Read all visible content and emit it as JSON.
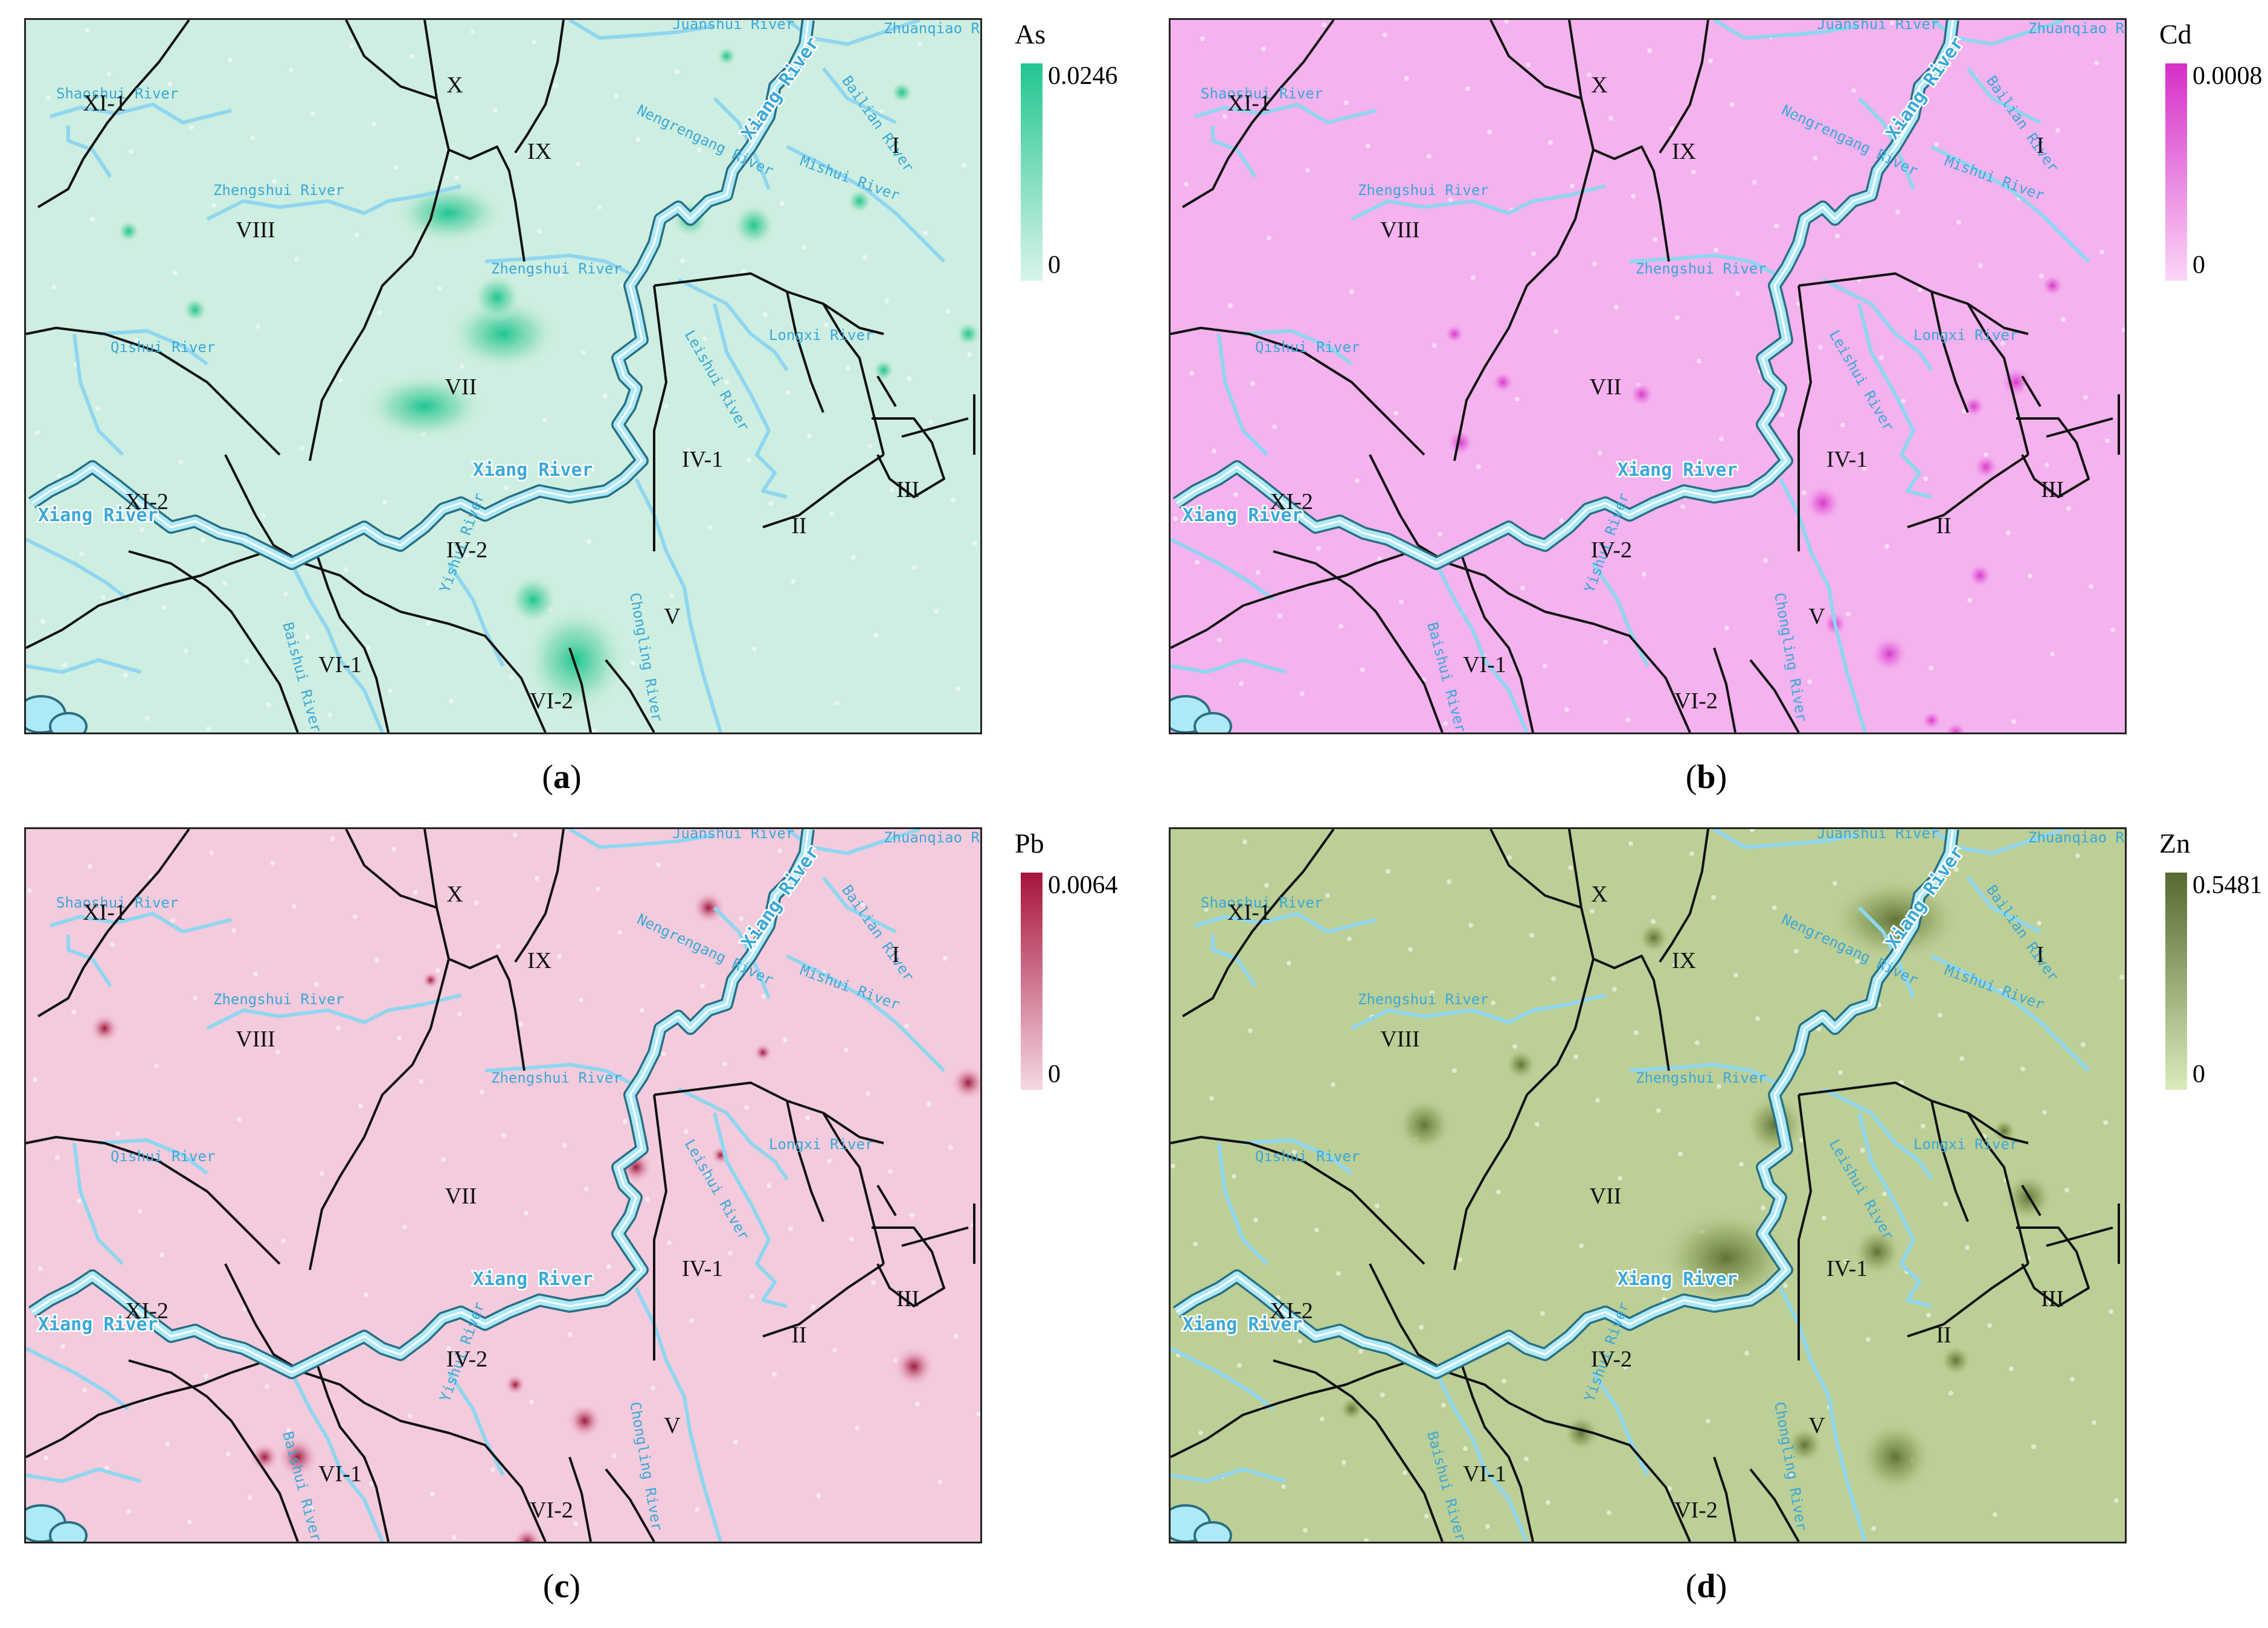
{
  "panels": [
    {
      "id": "a",
      "element": "As",
      "max_label": "0.0246",
      "min_label": "0",
      "caption_letter": "a",
      "bg": "#cdeee0",
      "mid": "#86dcb8",
      "dark": "#1fc592",
      "legend_top": "#22c591",
      "legend_bottom": "#d9f4ea"
    },
    {
      "id": "b",
      "element": "Cd",
      "max_label": "0.0008",
      "min_label": "0",
      "caption_letter": "b",
      "bg": "#f4b2ee",
      "mid": "#ec82e3",
      "dark": "#d43bc8",
      "legend_top": "#d52fc7",
      "legend_bottom": "#fbd6f7"
    },
    {
      "id": "c",
      "element": "Pb",
      "max_label": "0.0064",
      "min_label": "0",
      "caption_letter": "c",
      "bg": "#f3cbdc",
      "mid": "#e49ab4",
      "dark": "#9c1b3e",
      "legend_top": "#a6143b",
      "legend_bottom": "#f6d8e4"
    },
    {
      "id": "d",
      "element": "Zn",
      "max_label": "0.5481",
      "min_label": "0",
      "caption_letter": "d",
      "bg": "#bccf96",
      "mid": "#95ab6a",
      "dark": "#5f7436",
      "legend_top": "#56692f",
      "legend_bottom": "#dcebbd"
    }
  ],
  "zones": {
    "z1": "I",
    "z2": "II",
    "z3": "III",
    "z41": "IV-1",
    "z42": "IV-2",
    "z5": "V",
    "z61": "VI-1",
    "z62": "VI-2",
    "z7": "VII",
    "z8": "VIII",
    "z9": "IX",
    "z10": "X",
    "z111": "XI-1",
    "z112": "XI-2"
  },
  "rivers": {
    "juanshui": "Juanshui River",
    "zhuanqiao": "Zhuanqiao River",
    "xiang_north": "Xiang River",
    "bailian": "Bailian River",
    "shaoshui": "Shaoshui River",
    "nengrengang": "Nengrengang River",
    "zhengshui_west": "Zhengshui River",
    "mishui": "Mishui River",
    "zhengshui_east": "Zhengshui River",
    "qishui": "Qishui River",
    "longxi": "Longxi River",
    "leishui": "Leishui River",
    "xiang_center": "Xiang River",
    "xiang_west": "Xiang River",
    "baishui": "Baishui River",
    "yishui": "Yishui River",
    "chongling": "Chongling River"
  }
}
